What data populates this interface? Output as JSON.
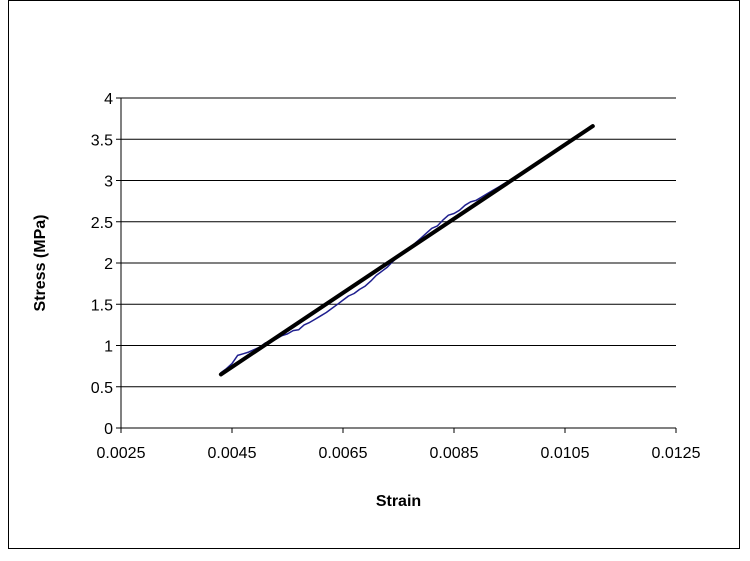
{
  "chart_data": {
    "type": "line",
    "title": "",
    "xlabel": "Strain",
    "ylabel": "Stress (MPa)",
    "xlim": [
      0.0025,
      0.0125
    ],
    "ylim": [
      0,
      4
    ],
    "xticks": [
      0.0025,
      0.0045,
      0.0065,
      0.0085,
      0.0105,
      0.0125
    ],
    "xtick_labels": [
      "0.0025",
      "0.0045",
      "0.0065",
      "0.0085",
      "0.0105",
      "0.0125"
    ],
    "yticks": [
      0,
      0.5,
      1,
      1.5,
      2,
      2.5,
      3,
      3.5,
      4
    ],
    "ytick_labels": [
      "0",
      "0.5",
      "1",
      "1.5",
      "2",
      "2.5",
      "3",
      "3.5",
      "4"
    ],
    "grid": "horizontal",
    "legend": "none",
    "series": [
      {
        "color": "#1f1f8f",
        "style": "thin",
        "x": [
          0.0043,
          0.0044,
          0.0045,
          0.0046,
          0.0047,
          0.0048,
          0.0049,
          0.005,
          0.0051,
          0.0052,
          0.0053,
          0.0054,
          0.0055,
          0.0056,
          0.0057,
          0.0058,
          0.0059,
          0.006,
          0.0061,
          0.0062,
          0.0063,
          0.0064,
          0.0065,
          0.0066,
          0.0067,
          0.0068,
          0.0069,
          0.007,
          0.0071,
          0.0072,
          0.0073,
          0.0074,
          0.0075,
          0.0076,
          0.0077,
          0.0078,
          0.0079,
          0.008,
          0.0081,
          0.0082,
          0.0083,
          0.0084,
          0.0085,
          0.0086,
          0.0087,
          0.0088,
          0.0089,
          0.009,
          0.0091,
          0.0092,
          0.0093,
          0.0094,
          0.0095,
          0.0096,
          0.0097,
          0.0098
        ],
        "y": [
          0.67,
          0.72,
          0.78,
          0.88,
          0.9,
          0.92,
          0.95,
          0.98,
          1.03,
          1.05,
          1.08,
          1.12,
          1.14,
          1.18,
          1.19,
          1.25,
          1.28,
          1.32,
          1.36,
          1.4,
          1.45,
          1.5,
          1.55,
          1.6,
          1.63,
          1.68,
          1.72,
          1.78,
          1.85,
          1.9,
          1.95,
          2.02,
          2.08,
          2.14,
          2.18,
          2.24,
          2.3,
          2.36,
          2.42,
          2.45,
          2.52,
          2.58,
          2.6,
          2.64,
          2.7,
          2.74,
          2.76,
          2.8,
          2.84,
          2.88,
          2.92,
          2.96,
          3.0,
          3.03,
          3.07,
          3.12
        ]
      },
      {
        "color": "#000000",
        "style": "thick",
        "x": [
          0.0043,
          0.011
        ],
        "y": [
          0.65,
          3.66
        ]
      }
    ]
  }
}
